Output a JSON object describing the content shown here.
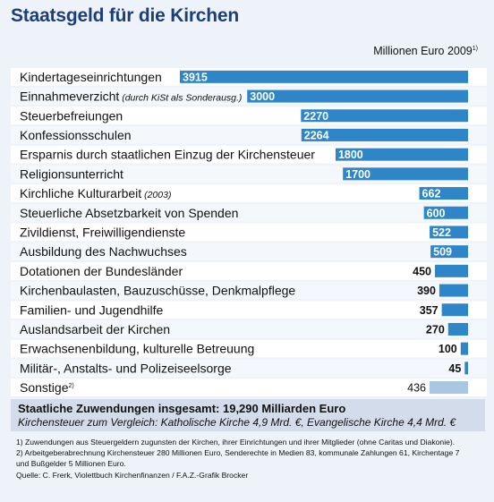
{
  "title": "Staatsgeld für die Kirchen",
  "unit_label": "Millionen Euro 2009",
  "unit_footnote": "1)",
  "chart_data": {
    "type": "bar",
    "orientation": "horizontal",
    "title": "Staatsgeld für die Kirchen",
    "unit": "Millionen Euro 2009",
    "bar_color": "#2e86c9",
    "other_color": "#a9c6e2",
    "categories": [
      {
        "label": "Kindertageseinrichtungen",
        "note": "",
        "value": 3915
      },
      {
        "label": "Einnahmeverzicht",
        "note": "(durch KiSt als Sonderausg.)",
        "value": 3000
      },
      {
        "label": "Steuerbefreiungen",
        "note": "",
        "value": 2270
      },
      {
        "label": "Konfessionsschulen",
        "note": "",
        "value": 2264
      },
      {
        "label": "Ersparnis durch staatlichen Einzug der Kirchensteuer",
        "note": "",
        "value": 1800
      },
      {
        "label": "Religionsunterricht",
        "note": "",
        "value": 1700
      },
      {
        "label": "Kirchliche Kulturarbeit",
        "note": "(2003)",
        "value": 662
      },
      {
        "label": "Steuerliche Absetzbarkeit von Spenden",
        "note": "",
        "value": 600
      },
      {
        "label": "Zivildienst, Freiwilligendienste",
        "note": "",
        "value": 522
      },
      {
        "label": "Ausbildung des Nachwuchses",
        "note": "",
        "value": 509
      },
      {
        "label": "Dotationen der Bundesländer",
        "note": "",
        "value": 450
      },
      {
        "label": "Kirchenbaulasten, Bauzuschüsse, Denkmalpflege",
        "note": "",
        "value": 390
      },
      {
        "label": "Familien- und Jugendhilfe",
        "note": "",
        "value": 357
      },
      {
        "label": "Auslandsarbeit der Kirchen",
        "note": "",
        "value": 270
      },
      {
        "label": "Erwachsenenbildung, kulturelle Betreuung",
        "note": "",
        "value": 100
      },
      {
        "label": "Militär-, Anstalts- und Polizeiseelsorge",
        "note": "",
        "value": 45
      },
      {
        "label": "Sonstige",
        "note": "2)",
        "value": 436,
        "other": true
      }
    ]
  },
  "total": "Staatliche Zuwendungen insgesamt: 19,290 Milliarden Euro",
  "comparison": "Kirchensteuer zum Vergleich: Katholische Kirche 4,9 Mrd. €, Evangelische Kirche 4,4 Mrd. €",
  "footnotes": [
    "1) Zuwendungen aus Steuergeldern zugunsten der Kirchen, ihrer Einrichtungen und ihrer Mitglieder (ohne Caritas und Diakonie).",
    "2) Arbeitgeberabrechnung Kirchensteuer 280 Millionen Euro, Senderechte in Medien 83, kommunale Zahlungen 61, Kirchentage 7",
    "und Bußgelder 5 Millionen Euro."
  ],
  "source": "Quelle: C. Frerk, Violettbuch Kirchenfinanzen / F.A.Z.-Grafik Brocker"
}
